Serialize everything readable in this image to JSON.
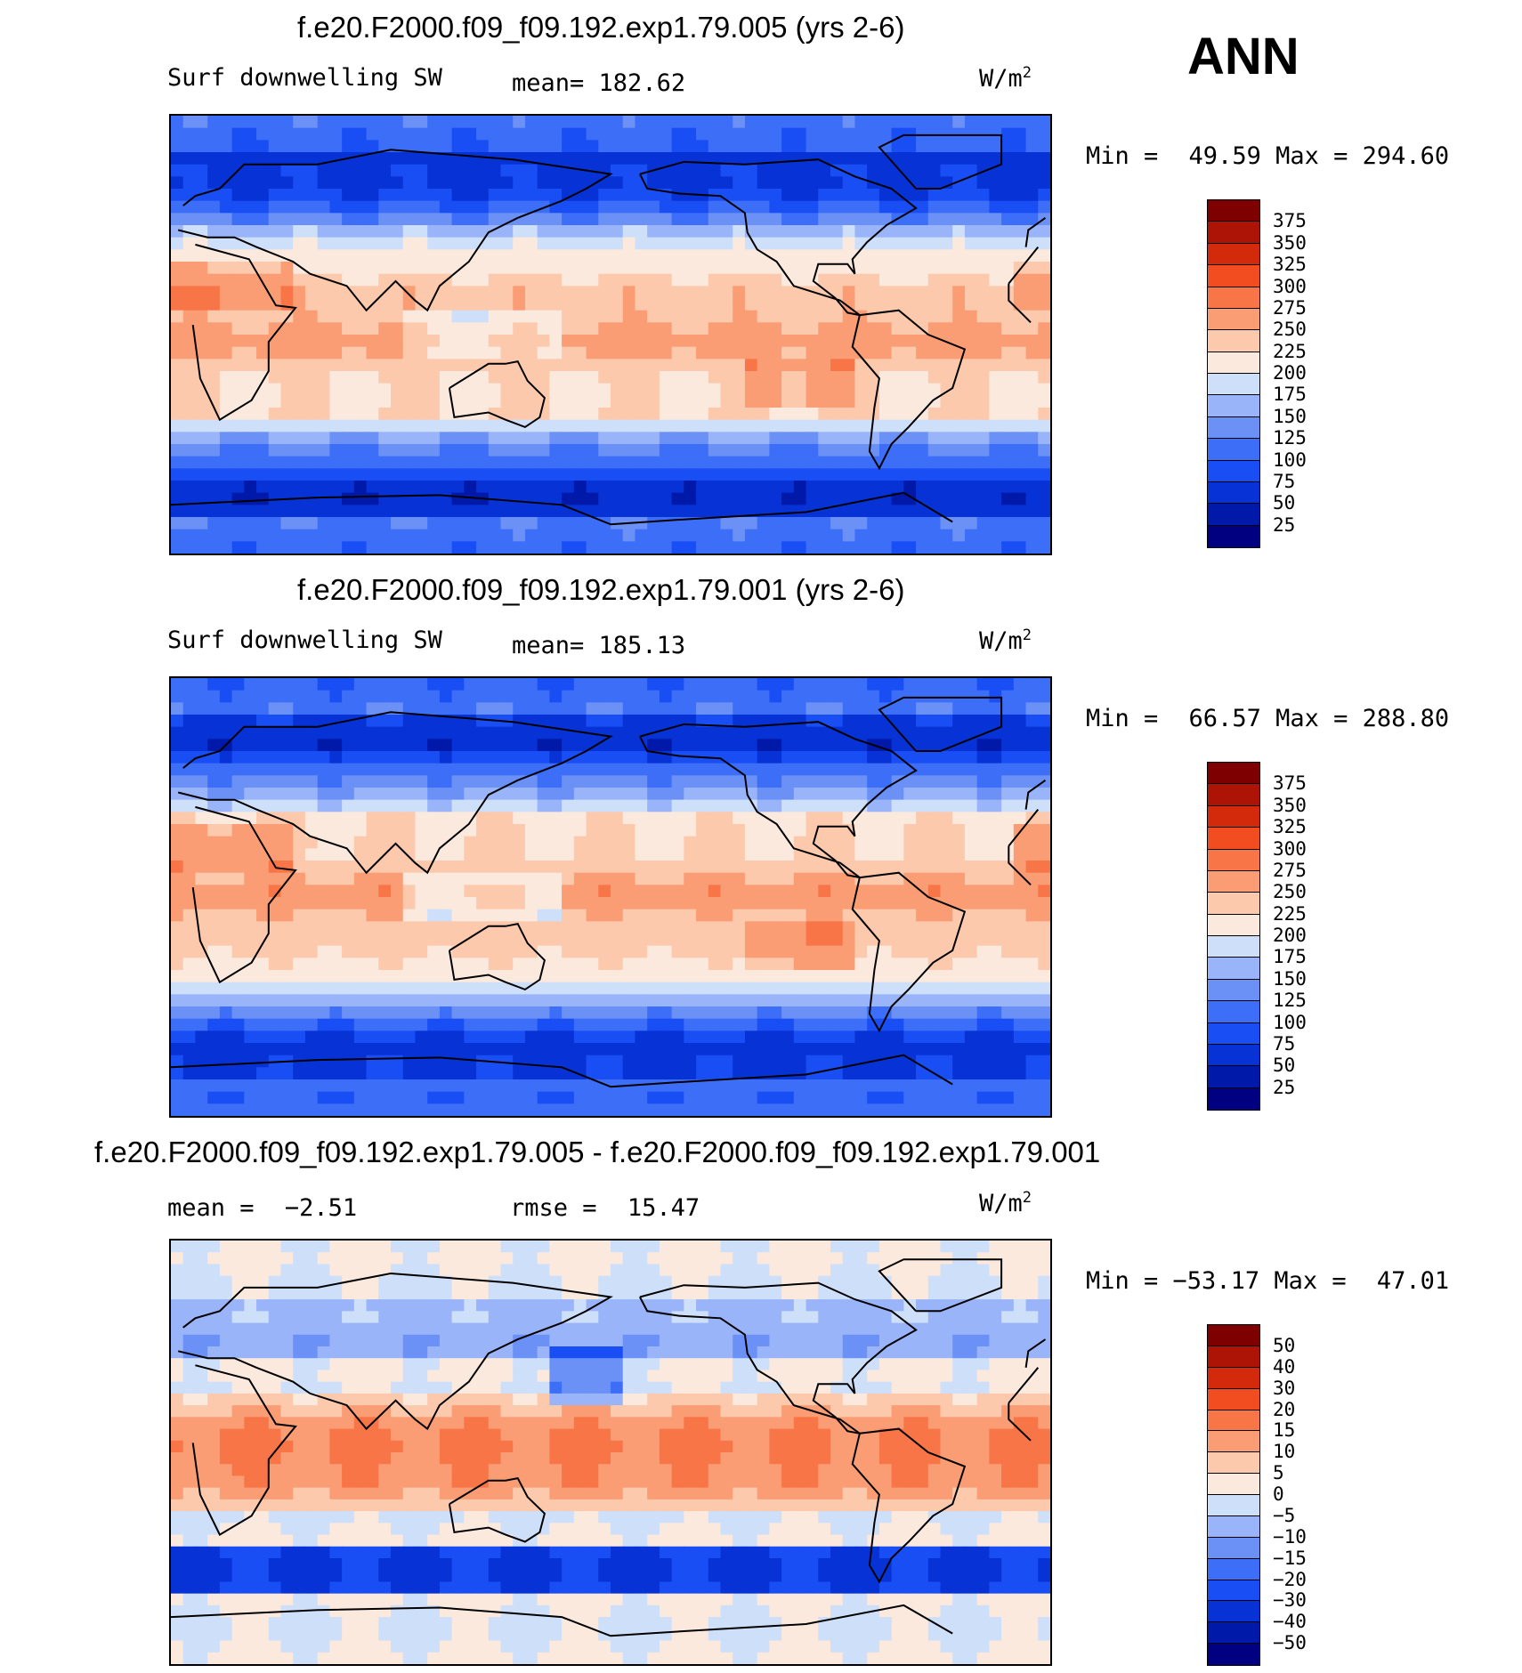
{
  "season": "ANN",
  "units_label": "W/m",
  "units_sup": "2",
  "panels": [
    {
      "title": "f.e20.F2000.f09_f09.192.exp1.79.005 (yrs 2-6)",
      "left_label": "Surf downwelling SW",
      "stat_label": "mean=",
      "stat_value": "182.62",
      "minmax": {
        "min_label": "Min =",
        "min": "49.59",
        "max_label": "Max =",
        "max": "294.60"
      },
      "colorbar_labels": [
        "375",
        "350",
        "325",
        "300",
        "275",
        "250",
        "225",
        "200",
        "175",
        "150",
        "125",
        "100",
        "75",
        "50",
        "25"
      ]
    },
    {
      "title": "f.e20.F2000.f09_f09.192.exp1.79.001 (yrs 2-6)",
      "left_label": "Surf downwelling SW",
      "stat_label": "mean=",
      "stat_value": "185.13",
      "minmax": {
        "min_label": "Min =",
        "min": "66.57",
        "max_label": "Max =",
        "max": "288.80"
      },
      "colorbar_labels": [
        "375",
        "350",
        "325",
        "300",
        "275",
        "250",
        "225",
        "200",
        "175",
        "150",
        "125",
        "100",
        "75",
        "50",
        "25"
      ]
    },
    {
      "title": "f.e20.F2000.f09_f09.192.exp1.79.005 - f.e20.F2000.f09_f09.192.exp1.79.001",
      "left_label": "mean =",
      "left_value": "−2.51",
      "stat_label": "rmse =",
      "stat_value": "15.47",
      "minmax": {
        "min_label": "Min =",
        "min": "−53.17",
        "max_label": "Max =",
        "max": "47.01"
      },
      "colorbar_labels": [
        "50",
        "40",
        "30",
        "20",
        "15",
        "10",
        "5",
        "0",
        "−5",
        "−10",
        "−15",
        "−20",
        "−30",
        "−40",
        "−50"
      ]
    }
  ],
  "chart_data": [
    {
      "type": "heatmap",
      "title": "f.e20.F2000.f09_f09.192.exp1.79.005 (yrs 2-6)",
      "subtitle": "Surf downwelling SW",
      "mean": 182.62,
      "min": 49.59,
      "max": 294.6,
      "units": "W/m2",
      "levels": [
        25,
        50,
        75,
        100,
        125,
        150,
        175,
        200,
        225,
        250,
        275,
        300,
        325,
        350,
        375
      ]
    },
    {
      "type": "heatmap",
      "title": "f.e20.F2000.f09_f09.192.exp1.79.001 (yrs 2-6)",
      "subtitle": "Surf downwelling SW",
      "mean": 185.13,
      "min": 66.57,
      "max": 288.8,
      "units": "W/m2",
      "levels": [
        25,
        50,
        75,
        100,
        125,
        150,
        175,
        200,
        225,
        250,
        275,
        300,
        325,
        350,
        375
      ]
    },
    {
      "type": "heatmap",
      "title": "f.e20.F2000.f09_f09.192.exp1.79.005 - f.e20.F2000.f09_f09.192.exp1.79.001",
      "mean": -2.51,
      "rmse": 15.47,
      "min": -53.17,
      "max": 47.01,
      "units": "W/m2",
      "levels": [
        -50,
        -40,
        -30,
        -20,
        -15,
        -10,
        -5,
        0,
        5,
        10,
        15,
        20,
        30,
        40,
        50
      ]
    }
  ],
  "colors": {
    "scale": [
      "#000080",
      "#0019a8",
      "#0632d6",
      "#1a4ef5",
      "#3d6ef8",
      "#6b91f7",
      "#9ab4f9",
      "#cddff9",
      "#fbe9de",
      "#fcc9ad",
      "#fa9d74",
      "#f87548",
      "#f24d21",
      "#d22a0b",
      "#ad1406",
      "#7e0000"
    ]
  }
}
